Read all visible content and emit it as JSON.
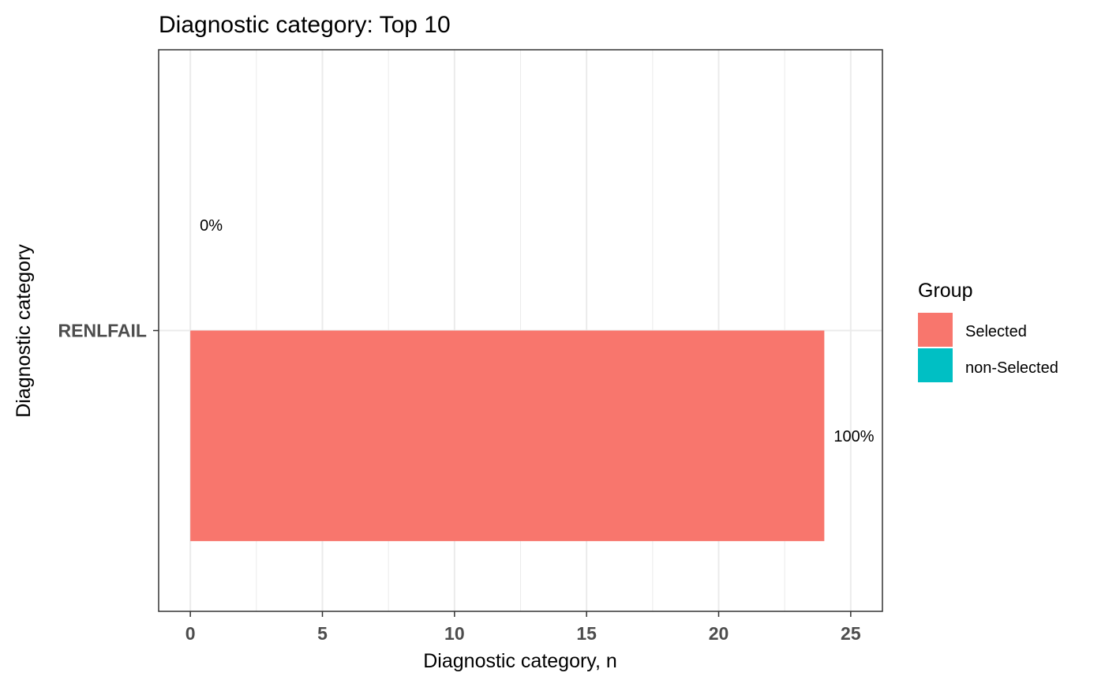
{
  "chart_data": {
    "type": "bar",
    "orientation": "horizontal",
    "title": "Diagnostic category: Top 10",
    "xlabel": "Diagnostic category, n",
    "ylabel": "Diagnostic category",
    "categories": [
      "RENLFAIL"
    ],
    "series": [
      {
        "name": "Selected",
        "values": [
          24
        ],
        "label": "100%",
        "color": "#F8766D"
      },
      {
        "name": "non-Selected",
        "values": [
          0
        ],
        "label": "0%",
        "color": "#00BFC4"
      }
    ],
    "xlim": [
      -1.2,
      26.2
    ],
    "xticks": [
      0,
      5,
      10,
      15,
      20,
      25
    ],
    "grid": true,
    "legend": {
      "title": "Group",
      "placement": "right",
      "items": [
        {
          "label": "Selected",
          "color": "#F8766D"
        },
        {
          "label": "non-Selected",
          "color": "#00BFC4"
        }
      ]
    }
  }
}
